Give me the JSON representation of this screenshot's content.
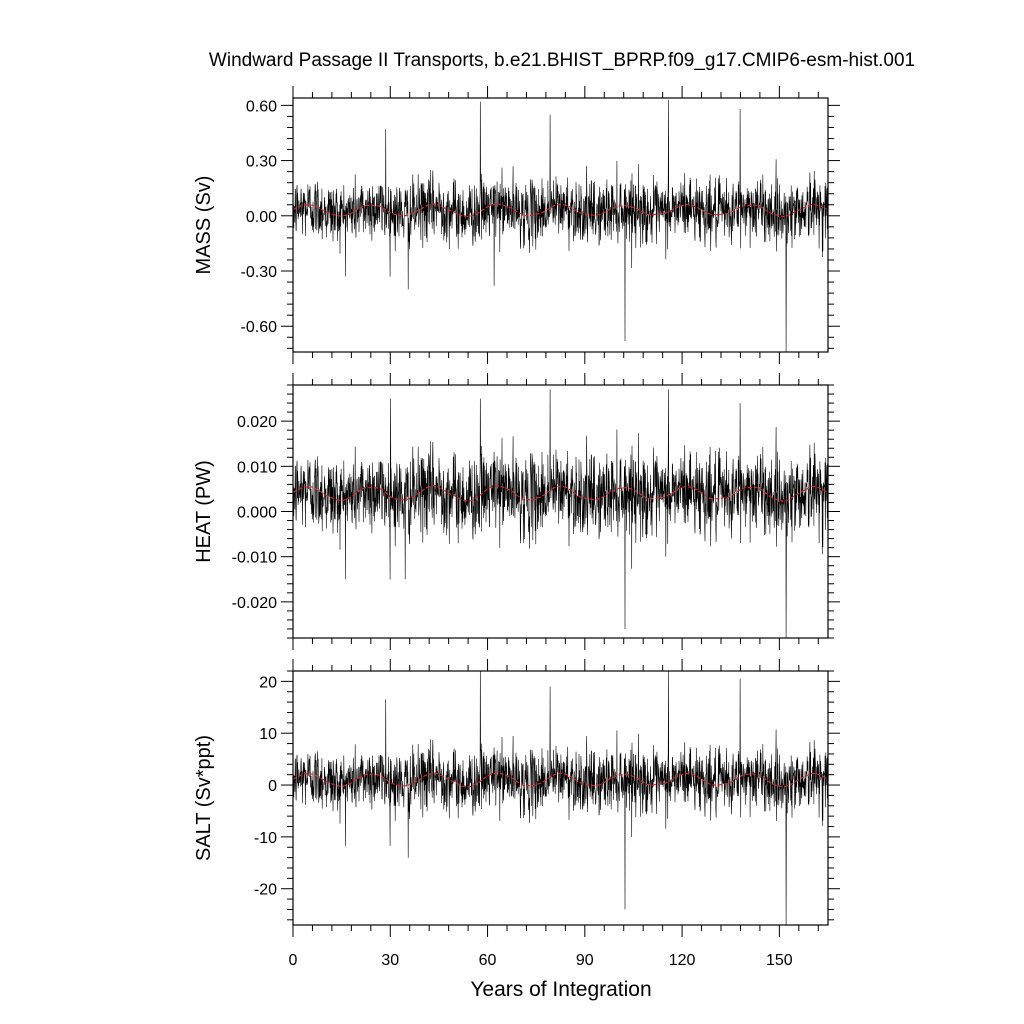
{
  "chart_data": {
    "type": "line",
    "title": "Windward Passage II Transports, b.e21.BHIST_BPRP.f09_g17.CMIP6-esm-hist.001",
    "xlabel": "Years of Integration",
    "xlim": [
      0,
      165
    ],
    "xticks": [
      "0",
      "30",
      "60",
      "90",
      "120",
      "150"
    ],
    "xtick_values": [
      0,
      30,
      60,
      90,
      120,
      150
    ],
    "grid": false,
    "colors": {
      "monthly": "#000000",
      "smoothed": "#d62728"
    },
    "panels": [
      {
        "ylabel": "MASS (Sv)",
        "ylim": [
          -0.74,
          0.64
        ],
        "ytick_values": [
          0.6,
          0.3,
          0.0,
          -0.3,
          -0.6
        ],
        "yticks": [
          "0.60",
          "0.30",
          "0.00",
          "-0.30",
          "-0.60"
        ],
        "mean": 0.03,
        "std": 0.085,
        "smooth_amp": 0.03,
        "spikes": [
          {
            "x": 57.8,
            "y": 0.62
          },
          {
            "x": 115.8,
            "y": 0.63
          },
          {
            "x": 28.6,
            "y": 0.47
          },
          {
            "x": 79.3,
            "y": 0.55
          },
          {
            "x": 137.9,
            "y": 0.58
          },
          {
            "x": 102.4,
            "y": -0.68
          },
          {
            "x": 152.1,
            "y": -0.74
          },
          {
            "x": 35.5,
            "y": -0.4
          },
          {
            "x": 62.0,
            "y": -0.38
          }
        ]
      },
      {
        "ylabel": "HEAT (PW)",
        "ylim": [
          -0.028,
          0.028
        ],
        "ytick_values": [
          0.02,
          0.01,
          0.0,
          -0.01,
          -0.02
        ],
        "yticks": [
          "0.020",
          "0.010",
          "0.000",
          "-0.010",
          "-0.020"
        ],
        "mean": 0.004,
        "std": 0.0045,
        "smooth_amp": 0.0015,
        "spikes": [
          {
            "x": 79.3,
            "y": 0.027
          },
          {
            "x": 115.8,
            "y": 0.027
          },
          {
            "x": 30.1,
            "y": 0.025
          },
          {
            "x": 57.8,
            "y": 0.025
          },
          {
            "x": 137.9,
            "y": 0.024
          },
          {
            "x": 102.4,
            "y": -0.026
          },
          {
            "x": 152.1,
            "y": -0.028
          },
          {
            "x": 34.6,
            "y": -0.015
          }
        ]
      },
      {
        "ylabel": "SALT (Sv*ppt)",
        "ylim": [
          -27,
          22
        ],
        "ytick_values": [
          20,
          10,
          0,
          -10,
          -20
        ],
        "yticks": [
          "20",
          "10",
          "0",
          "-10",
          "-20"
        ],
        "mean": 1.0,
        "std": 3.0,
        "smooth_amp": 1.2,
        "spikes": [
          {
            "x": 57.8,
            "y": 22
          },
          {
            "x": 115.8,
            "y": 22
          },
          {
            "x": 28.6,
            "y": 16.5
          },
          {
            "x": 79.3,
            "y": 19
          },
          {
            "x": 137.9,
            "y": 20.5
          },
          {
            "x": 102.4,
            "y": -24
          },
          {
            "x": 152.1,
            "y": -27
          },
          {
            "x": 35.5,
            "y": -14
          }
        ]
      }
    ]
  }
}
